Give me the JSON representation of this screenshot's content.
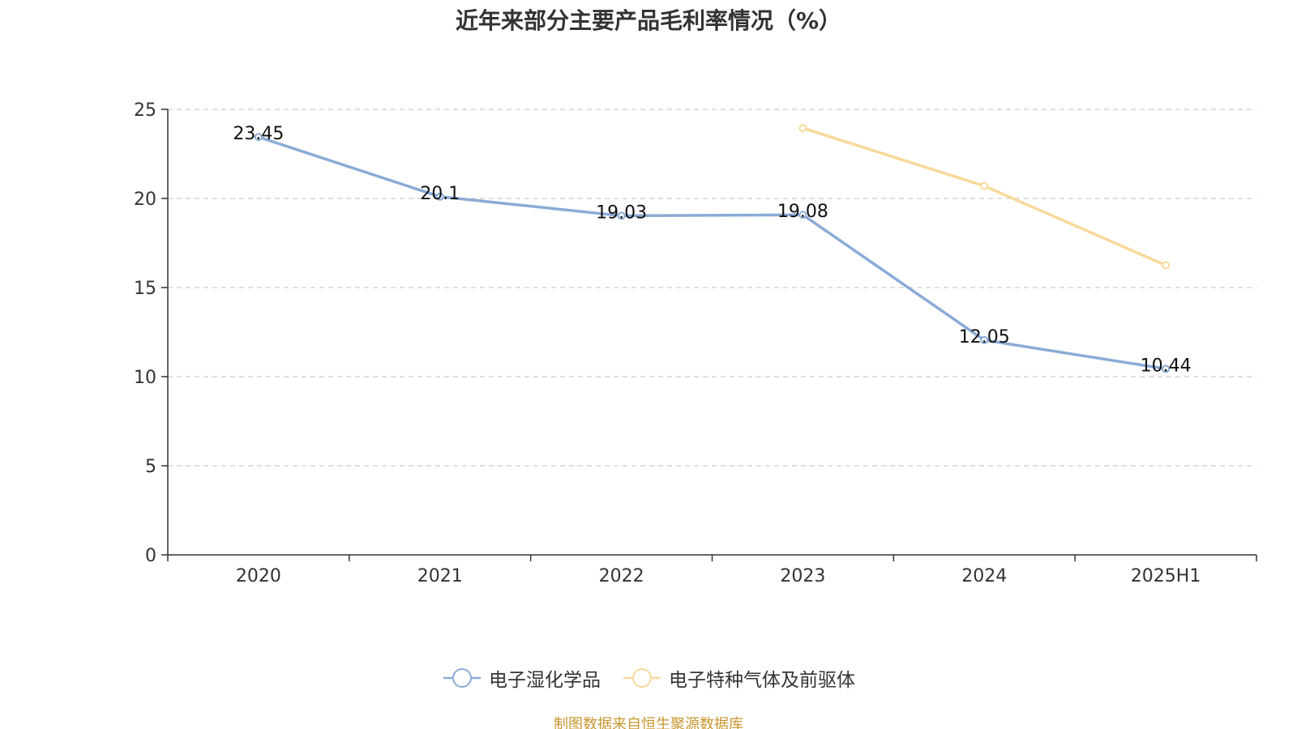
{
  "chart_data": {
    "type": "line",
    "title": "近年来部分主要产品毛利率情况（%）",
    "categories": [
      "2020",
      "2021",
      "2022",
      "2023",
      "2024",
      "2025H1"
    ],
    "ylim": [
      0,
      25
    ],
    "yticks": [
      0,
      5,
      10,
      15,
      20,
      25
    ],
    "grid": true,
    "legend_position": "bottom",
    "series": [
      {
        "name": "电子湿化学品",
        "color": "#8aabd6",
        "values": [
          23.45,
          20.1,
          19.03,
          19.08,
          12.05,
          10.44
        ],
        "labels": [
          "23.45",
          "20.1",
          "19.03",
          "19.08",
          "12.05",
          "10.44"
        ],
        "show_labels": true
      },
      {
        "name": "电子特种气体及前驱体",
        "color": "#f8d99b",
        "values": [
          null,
          null,
          null,
          23.95,
          20.7,
          16.25
        ],
        "show_labels": false
      }
    ]
  },
  "source_note": "制图数据来自恒生聚源数据库"
}
